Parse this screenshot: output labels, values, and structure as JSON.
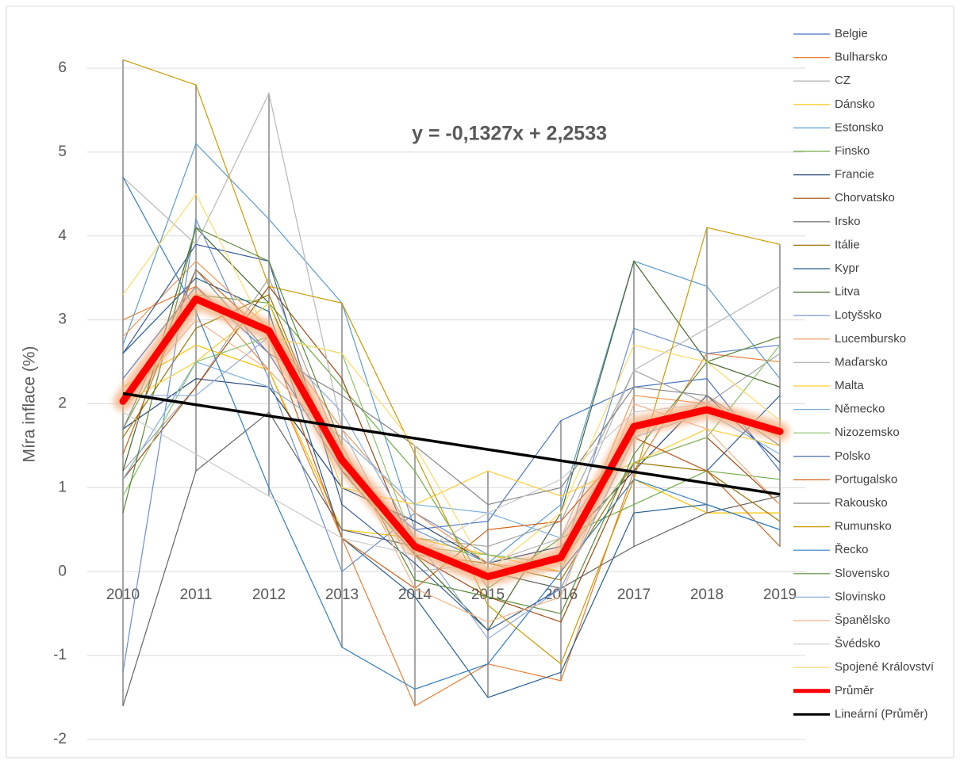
{
  "chart_data": {
    "type": "line",
    "y_axis_label": "Míra inflace (%)",
    "categories": [
      "2010",
      "2011",
      "2012",
      "2013",
      "2014",
      "2015",
      "2016",
      "2017",
      "2018",
      "2019"
    ],
    "ylim": [
      -2,
      6
    ],
    "yticks": [
      -2,
      -1,
      0,
      1,
      2,
      3,
      4,
      5,
      6
    ],
    "grid": true,
    "legend": "right",
    "high_low_lines": true,
    "series": [
      {
        "name": "Belgie",
        "color": "#4472C4",
        "values": [
          2.3,
          3.4,
          2.6,
          1.2,
          0.5,
          0.6,
          1.8,
          2.2,
          2.3,
          1.2
        ]
      },
      {
        "name": "Bulharsko",
        "color": "#ED7D31",
        "values": [
          3.0,
          3.4,
          2.4,
          0.4,
          -1.6,
          -1.1,
          -1.3,
          1.2,
          2.6,
          2.5
        ]
      },
      {
        "name": "CZ",
        "color": "#A5A5A5",
        "values": [
          1.2,
          2.2,
          3.5,
          1.4,
          0.4,
          0.3,
          0.6,
          2.4,
          2.0,
          2.6
        ]
      },
      {
        "name": "Dánsko",
        "color": "#FFC000",
        "values": [
          2.2,
          2.7,
          2.4,
          0.5,
          0.4,
          0.2,
          0.0,
          1.1,
          0.7,
          0.7
        ]
      },
      {
        "name": "Estonsko",
        "color": "#5B9BD5",
        "values": [
          2.7,
          5.1,
          4.2,
          3.2,
          0.5,
          0.1,
          0.8,
          3.7,
          3.4,
          2.3
        ]
      },
      {
        "name": "Finsko",
        "color": "#70AD47",
        "values": [
          1.7,
          3.3,
          3.2,
          2.2,
          1.2,
          -0.2,
          0.4,
          0.8,
          1.2,
          1.1
        ]
      },
      {
        "name": "Francie",
        "color": "#264478",
        "values": [
          1.7,
          2.3,
          2.2,
          1.0,
          0.6,
          0.1,
          0.3,
          1.2,
          2.1,
          1.3
        ]
      },
      {
        "name": "Chorvatsko",
        "color": "#9E480E",
        "values": [
          1.1,
          2.2,
          3.4,
          2.3,
          0.2,
          -0.3,
          -0.6,
          1.3,
          1.6,
          0.8
        ]
      },
      {
        "name": "Irsko",
        "color": "#636363",
        "values": [
          -1.6,
          1.2,
          1.9,
          0.5,
          0.3,
          0.0,
          -0.2,
          0.3,
          0.7,
          0.9
        ]
      },
      {
        "name": "Itálie",
        "color": "#997300",
        "values": [
          1.6,
          2.9,
          3.3,
          1.2,
          0.2,
          0.1,
          -0.1,
          1.3,
          1.2,
          0.6
        ]
      },
      {
        "name": "Kypr",
        "color": "#255E91",
        "values": [
          2.6,
          3.5,
          3.1,
          0.4,
          -0.3,
          -1.5,
          -1.2,
          0.7,
          0.8,
          0.5
        ]
      },
      {
        "name": "Litva",
        "color": "#43682B",
        "values": [
          1.2,
          4.1,
          3.2,
          1.2,
          0.2,
          -0.7,
          0.7,
          3.7,
          2.5,
          2.2
        ]
      },
      {
        "name": "Lotyšsko",
        "color": "#698ED0",
        "values": [
          -1.2,
          4.2,
          2.3,
          0.0,
          0.7,
          0.2,
          0.1,
          2.9,
          2.6,
          2.7
        ]
      },
      {
        "name": "Lucembursko",
        "color": "#F1975A",
        "values": [
          2.8,
          3.7,
          2.9,
          1.7,
          0.7,
          0.1,
          0.0,
          2.1,
          2.0,
          1.6
        ]
      },
      {
        "name": "Maďarsko",
        "color": "#B7B7B7",
        "values": [
          4.7,
          3.9,
          5.7,
          1.7,
          0.0,
          0.1,
          0.4,
          2.4,
          2.9,
          3.4
        ]
      },
      {
        "name": "Malta",
        "color": "#FFCD33",
        "values": [
          2.0,
          2.5,
          3.2,
          1.0,
          0.8,
          1.2,
          0.9,
          1.3,
          1.7,
          1.5
        ]
      },
      {
        "name": "Německo",
        "color": "#7CAFDD",
        "values": [
          1.1,
          2.5,
          2.2,
          1.6,
          0.8,
          0.7,
          0.4,
          1.7,
          1.9,
          1.4
        ]
      },
      {
        "name": "Nizozemsko",
        "color": "#8CC168",
        "values": [
          0.9,
          2.5,
          2.8,
          2.6,
          0.3,
          0.2,
          0.1,
          1.3,
          1.6,
          2.7
        ]
      },
      {
        "name": "Polsko",
        "color": "#335AA1",
        "values": [
          2.6,
          3.9,
          3.7,
          0.8,
          0.1,
          -0.7,
          -0.2,
          1.6,
          1.2,
          2.1
        ]
      },
      {
        "name": "Portugalsko",
        "color": "#D26012",
        "values": [
          1.4,
          3.6,
          2.8,
          0.4,
          -0.2,
          0.5,
          0.6,
          1.6,
          1.2,
          0.3
        ]
      },
      {
        "name": "Rakousko",
        "color": "#848484",
        "values": [
          1.7,
          3.6,
          2.6,
          2.1,
          1.5,
          0.8,
          1.0,
          2.2,
          2.1,
          1.5
        ]
      },
      {
        "name": "Rumunsko",
        "color": "#CC9A00",
        "values": [
          6.1,
          5.8,
          3.4,
          3.2,
          1.4,
          -0.4,
          -1.1,
          1.1,
          4.1,
          3.9
        ]
      },
      {
        "name": "Řecko",
        "color": "#327DC2",
        "values": [
          4.7,
          3.1,
          1.0,
          -0.9,
          -1.4,
          -1.1,
          0.0,
          1.1,
          0.8,
          0.5
        ]
      },
      {
        "name": "Slovensko",
        "color": "#5A8A39",
        "values": [
          0.7,
          4.1,
          3.7,
          1.5,
          -0.1,
          -0.3,
          -0.5,
          1.4,
          2.5,
          2.8
        ]
      },
      {
        "name": "Slovinsko",
        "color": "#8FAADC",
        "values": [
          2.1,
          2.1,
          2.8,
          1.9,
          0.4,
          -0.8,
          -0.2,
          1.6,
          1.9,
          1.7
        ]
      },
      {
        "name": "Španělsko",
        "color": "#F4B183",
        "values": [
          2.0,
          3.0,
          2.4,
          1.5,
          -0.2,
          -0.6,
          -0.3,
          2.0,
          1.7,
          0.8
        ]
      },
      {
        "name": "Švédsko",
        "color": "#C9C9C9",
        "values": [
          1.9,
          1.4,
          0.9,
          0.4,
          0.2,
          0.7,
          1.1,
          1.9,
          2.0,
          1.7
        ]
      },
      {
        "name": "Spojené Království",
        "color": "#FFD966",
        "values": [
          3.3,
          4.5,
          2.8,
          2.6,
          1.5,
          0.0,
          0.7,
          2.7,
          2.5,
          1.8
        ]
      }
    ],
    "average": {
      "name": "Průměr",
      "color": "#FF0000",
      "glow_color": "#F4B183",
      "values": [
        2.03,
        3.25,
        2.87,
        1.33,
        0.3,
        -0.06,
        0.17,
        1.73,
        1.93,
        1.67
      ]
    },
    "trendline": {
      "name": "Lineární (Průměr)",
      "color": "#000000",
      "equation": "y = -0,1327x + 2,2533"
    }
  }
}
